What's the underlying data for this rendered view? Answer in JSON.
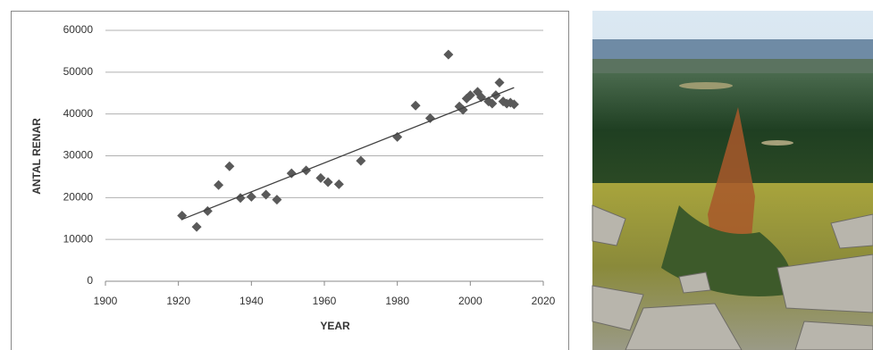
{
  "chart_data": {
    "type": "scatter",
    "xlabel": "YEAR",
    "ylabel": "ANTAL RENAR",
    "x": [
      1921,
      1925,
      1928,
      1931,
      1934,
      1937,
      1940,
      1944,
      1947,
      1951,
      1955,
      1959,
      1961,
      1964,
      1970,
      1980,
      1985,
      1989,
      1994,
      1997,
      1998,
      1999,
      2000,
      2002,
      2003,
      2005,
      2006,
      2007,
      2008,
      2009,
      2010,
      2011,
      2012
    ],
    "values": [
      15700,
      13000,
      16800,
      23000,
      27500,
      19900,
      20200,
      20700,
      19500,
      25800,
      26500,
      24700,
      23700,
      23200,
      28800,
      34500,
      42000,
      39000,
      54200,
      41800,
      41000,
      43700,
      44500,
      45300,
      44000,
      43000,
      42500,
      44500,
      47500,
      43000,
      42500,
      42700,
      42300
    ],
    "color": "#595959",
    "trendline": {
      "x": [
        1921,
        2012
      ],
      "values": [
        14800,
        46300
      ],
      "color": "#404040"
    },
    "xlim": [
      1900,
      2020
    ],
    "xticks": [
      1900,
      1920,
      1940,
      1960,
      1980,
      2000,
      2020
    ],
    "ylim": [
      0,
      60000
    ],
    "yticks": [
      0,
      10000,
      20000,
      30000,
      40000,
      50000,
      60000
    ],
    "grid": true
  }
}
